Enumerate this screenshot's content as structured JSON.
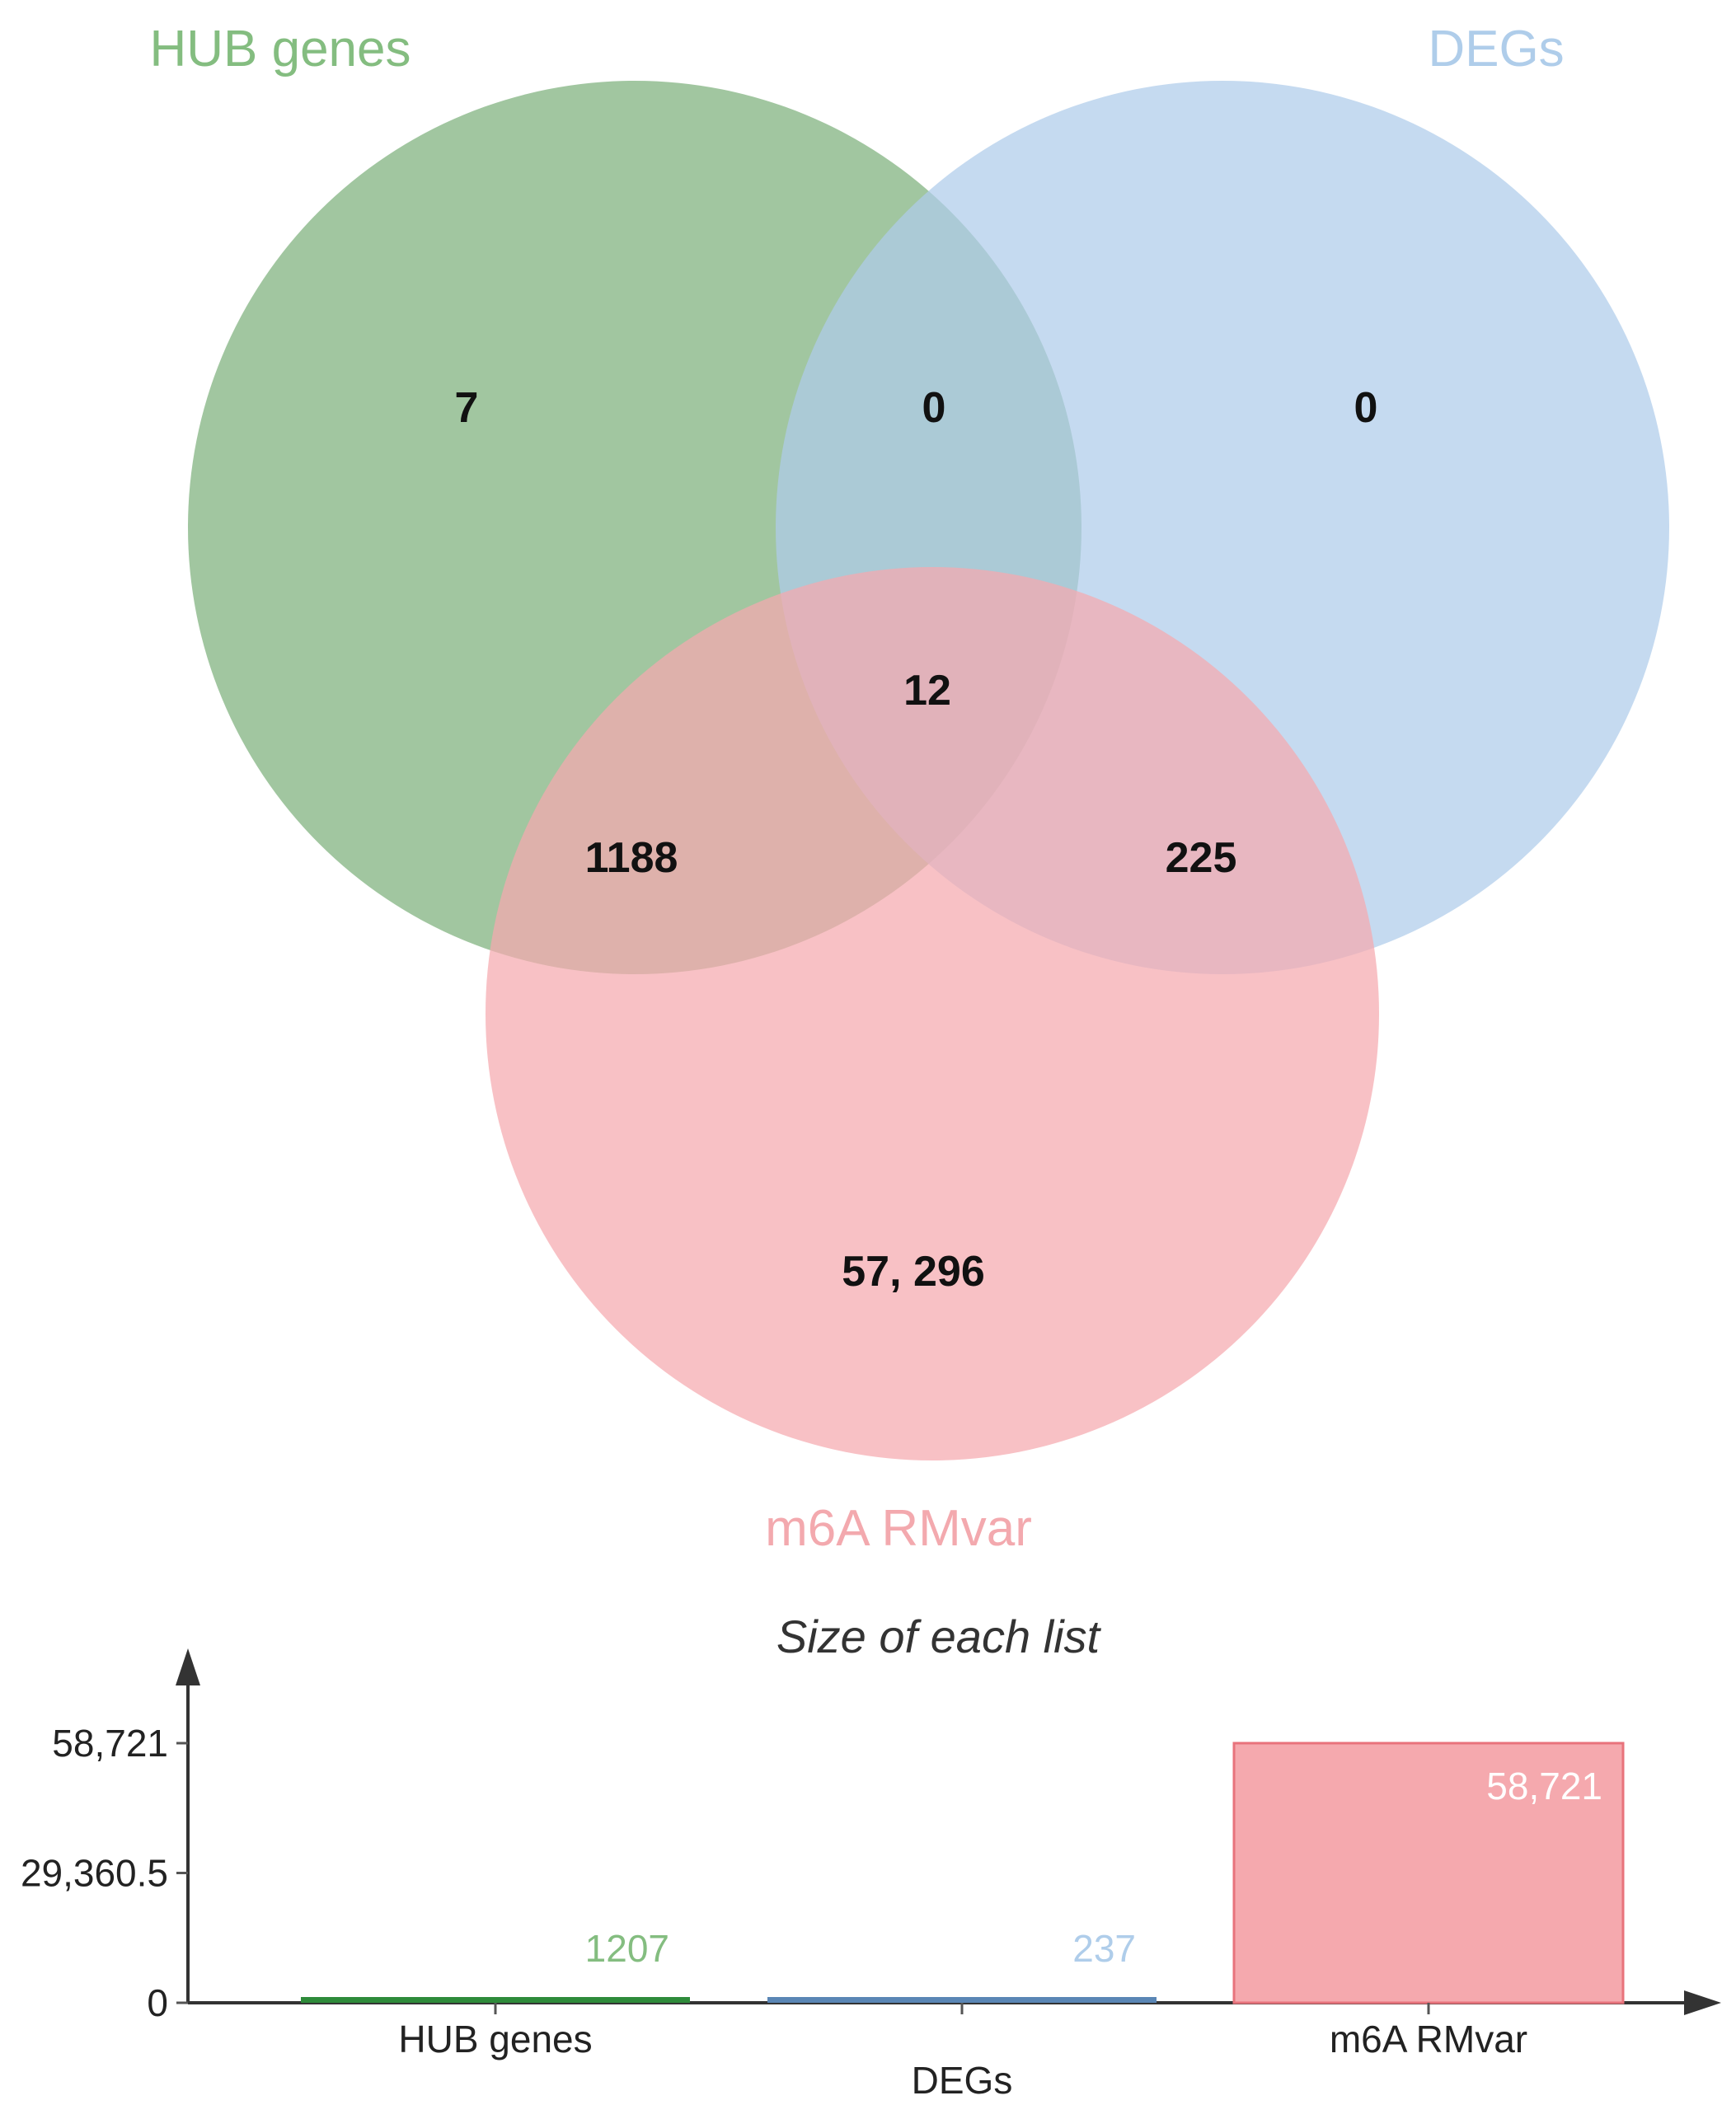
{
  "venn": {
    "sets": [
      {
        "key": "hub",
        "label": "HUB genes",
        "color": "#7DB07B",
        "label_color": "#84BD80"
      },
      {
        "key": "degs",
        "label": "DEGs",
        "color": "#AECCEA",
        "label_color": "#AFCDEA"
      },
      {
        "key": "m6a",
        "label": "m6A RMvar",
        "color": "#F5A9AE",
        "label_color": "#F3A9AE"
      }
    ],
    "regions": {
      "hub_only": "7",
      "hub_degs": "0",
      "degs_only": "0",
      "all_three": "12",
      "hub_m6a": "1188",
      "degs_m6a": "225",
      "m6a_only": "57, 296"
    }
  },
  "chart_data": {
    "type": "bar",
    "title": "Size of each list",
    "categories": [
      "HUB genes",
      "DEGs",
      "m6A RMvar"
    ],
    "values": [
      1207,
      237,
      58721
    ],
    "value_labels": [
      "1207",
      "237",
      "58,721"
    ],
    "colors": [
      "#2E8B3A",
      "#5A86B5",
      "#F5A9AE"
    ],
    "value_label_colors": [
      "#84BD80",
      "#AFCDEA",
      "#FFFFFF"
    ],
    "yticks": [
      0,
      29360.5,
      58721
    ],
    "ytick_labels": [
      "0",
      "29,360.5",
      "58,721"
    ],
    "ylim": [
      0,
      58721
    ],
    "xlabel": "",
    "ylabel": "",
    "grid": false
  }
}
